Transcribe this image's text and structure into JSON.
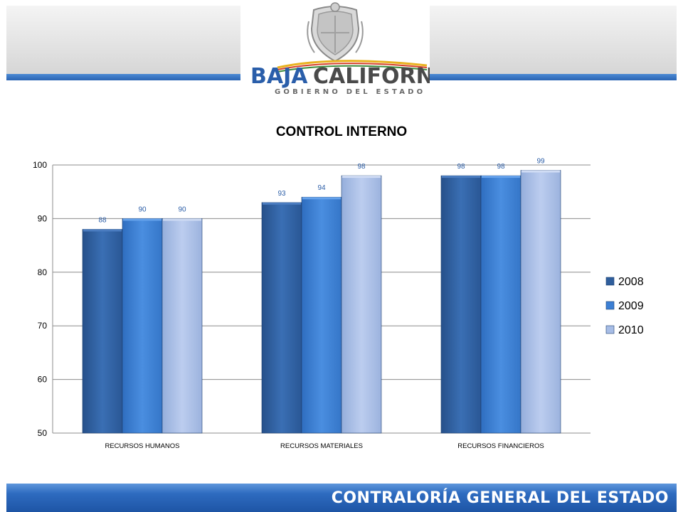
{
  "header": {
    "logo_main_left": "BAJA",
    "logo_main_right": "CALIFORNIA",
    "logo_sub": "GOBIERNO DEL ESTADO"
  },
  "footer": {
    "text": "CONTRALORÍA GENERAL DEL ESTADO"
  },
  "colors": {
    "series_2008": "#2f5e9c",
    "series_2009": "#3c7fd4",
    "series_2010": "#a7bde6",
    "band_blue": "#2a64b3"
  },
  "chart_data": {
    "type": "bar",
    "title": "CONTROL INTERNO",
    "xlabel": "",
    "ylabel": "",
    "ylim": [
      50,
      100
    ],
    "yticks": [
      50,
      60,
      70,
      80,
      90,
      100
    ],
    "grid": true,
    "legend_position": "right",
    "categories": [
      "RECURSOS HUMANOS",
      "RECURSOS MATERIALES",
      "RECURSOS FINANCIEROS"
    ],
    "series": [
      {
        "name": "2008",
        "values": [
          88,
          93,
          98
        ]
      },
      {
        "name": "2009",
        "values": [
          90,
          94,
          98
        ]
      },
      {
        "name": "2010",
        "values": [
          90,
          98,
          99
        ]
      }
    ]
  }
}
